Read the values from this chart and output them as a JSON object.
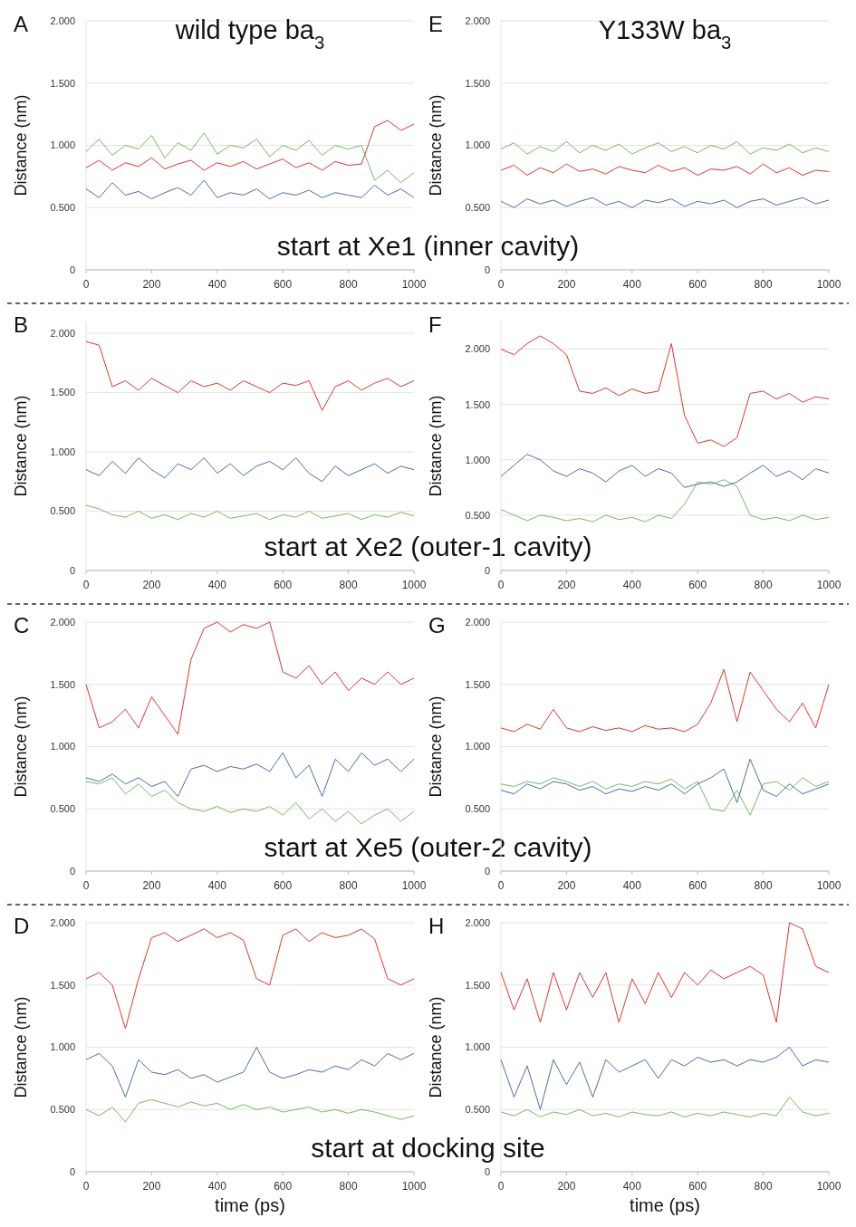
{
  "chart_data": [
    {
      "type": "line",
      "title": "A",
      "subtitle": "wild type ba$_{3}$",
      "ylabel": "Distance (nm)",
      "annotations": [
        "start at Xe1 (inner cavity)"
      ],
      "x": [
        0,
        40,
        80,
        120,
        160,
        200,
        240,
        280,
        320,
        360,
        400,
        440,
        480,
        520,
        560,
        600,
        640,
        680,
        720,
        760,
        800,
        840,
        880,
        920,
        960,
        1000
      ],
      "xlim": [
        0,
        1000
      ],
      "xticks": [
        0,
        200,
        400,
        600,
        800,
        1000
      ],
      "ylim": [
        0,
        2
      ],
      "yticks": [
        {
          "value": 0,
          "label": "0"
        },
        {
          "value": 0.5,
          "label": "0.500"
        },
        {
          "value": 1,
          "label": "1.000"
        },
        {
          "value": 1.5,
          "label": "1.500"
        },
        {
          "value": 2,
          "label": "2.000"
        }
      ],
      "grid": "y",
      "series": [
        {
          "color": "#e0352b",
          "values": [
            0.82,
            0.88,
            0.8,
            0.86,
            0.83,
            0.9,
            0.81,
            0.85,
            0.88,
            0.8,
            0.86,
            0.83,
            0.87,
            0.81,
            0.85,
            0.89,
            0.82,
            0.86,
            0.8,
            0.87,
            0.84,
            0.85,
            1.15,
            1.2,
            1.12,
            1.17
          ]
        },
        {
          "color": "#7ab665",
          "values": [
            0.95,
            1.05,
            0.92,
            1.0,
            0.97,
            1.08,
            0.9,
            1.02,
            0.96,
            1.1,
            0.93,
            1.0,
            0.98,
            1.05,
            0.91,
            1.0,
            0.96,
            1.04,
            0.92,
            1.0,
            0.97,
            1.0,
            0.72,
            0.8,
            0.7,
            0.78
          ]
        },
        {
          "color": "#4a6fa5",
          "values": [
            0.65,
            0.58,
            0.7,
            0.6,
            0.63,
            0.57,
            0.62,
            0.66,
            0.6,
            0.72,
            0.58,
            0.62,
            0.6,
            0.65,
            0.57,
            0.62,
            0.6,
            0.64,
            0.58,
            0.62,
            0.6,
            0.58,
            0.68,
            0.6,
            0.65,
            0.58
          ]
        }
      ]
    },
    {
      "type": "line",
      "title": "E",
      "subtitle": "Y133W ba$_{3}$",
      "ylabel": "Distance (nm)",
      "x": [
        0,
        40,
        80,
        120,
        160,
        200,
        240,
        280,
        320,
        360,
        400,
        440,
        480,
        520,
        560,
        600,
        640,
        680,
        720,
        760,
        800,
        840,
        880,
        920,
        960,
        1000
      ],
      "xlim": [
        0,
        1000
      ],
      "xticks": [
        0,
        200,
        400,
        600,
        800,
        1000
      ],
      "ylim": [
        0,
        2
      ],
      "yticks": [
        {
          "value": 0,
          "label": "0"
        },
        {
          "value": 0.5,
          "label": "0.500"
        },
        {
          "value": 1,
          "label": "1.000"
        },
        {
          "value": 1.5,
          "label": "1.500"
        },
        {
          "value": 2,
          "label": "2.000"
        }
      ],
      "grid": "y",
      "series": [
        {
          "color": "#e0352b",
          "values": [
            0.8,
            0.84,
            0.76,
            0.82,
            0.78,
            0.85,
            0.79,
            0.81,
            0.77,
            0.83,
            0.8,
            0.78,
            0.84,
            0.79,
            0.82,
            0.76,
            0.81,
            0.8,
            0.83,
            0.77,
            0.85,
            0.78,
            0.82,
            0.76,
            0.8,
            0.79
          ]
        },
        {
          "color": "#7ab665",
          "values": [
            0.97,
            1.02,
            0.93,
            0.99,
            0.95,
            1.03,
            0.94,
            1.0,
            0.96,
            1.01,
            0.93,
            0.98,
            1.02,
            0.95,
            0.99,
            0.94,
            1.0,
            0.97,
            1.03,
            0.93,
            0.98,
            0.96,
            1.01,
            0.94,
            0.98,
            0.95
          ]
        },
        {
          "color": "#4a6fa5",
          "values": [
            0.55,
            0.5,
            0.57,
            0.53,
            0.56,
            0.51,
            0.55,
            0.58,
            0.52,
            0.55,
            0.5,
            0.56,
            0.54,
            0.57,
            0.51,
            0.55,
            0.53,
            0.56,
            0.5,
            0.55,
            0.57,
            0.52,
            0.55,
            0.58,
            0.53,
            0.56
          ]
        }
      ]
    },
    {
      "type": "line",
      "title": "B",
      "ylabel": "Distance (nm)",
      "annotations": [
        "start at Xe2 (outer-1 cavity)"
      ],
      "x": [
        0,
        40,
        80,
        120,
        160,
        200,
        240,
        280,
        320,
        360,
        400,
        440,
        480,
        520,
        560,
        600,
        640,
        680,
        720,
        760,
        800,
        840,
        880,
        920,
        960,
        1000
      ],
      "xlim": [
        0,
        1000
      ],
      "xticks": [
        0,
        200,
        400,
        600,
        800,
        1000
      ],
      "ylim": [
        0,
        2.1
      ],
      "yticks": [
        {
          "value": 0,
          "label": "0"
        },
        {
          "value": 0.5,
          "label": "0.500"
        },
        {
          "value": 1,
          "label": "1.000"
        },
        {
          "value": 1.5,
          "label": "1.500"
        },
        {
          "value": 2,
          "label": "2.000"
        }
      ],
      "grid": "y",
      "series": [
        {
          "color": "#e0352b",
          "values": [
            1.93,
            1.9,
            1.55,
            1.6,
            1.52,
            1.62,
            1.56,
            1.5,
            1.6,
            1.55,
            1.58,
            1.52,
            1.6,
            1.55,
            1.5,
            1.58,
            1.56,
            1.6,
            1.35,
            1.55,
            1.6,
            1.52,
            1.58,
            1.62,
            1.55,
            1.6
          ]
        },
        {
          "color": "#7ab665",
          "values": [
            0.55,
            0.52,
            0.47,
            0.45,
            0.5,
            0.44,
            0.47,
            0.43,
            0.48,
            0.45,
            0.5,
            0.44,
            0.46,
            0.48,
            0.43,
            0.47,
            0.45,
            0.5,
            0.44,
            0.46,
            0.48,
            0.43,
            0.47,
            0.45,
            0.49,
            0.46
          ]
        },
        {
          "color": "#4a6fa5",
          "values": [
            0.85,
            0.8,
            0.92,
            0.82,
            0.95,
            0.85,
            0.78,
            0.9,
            0.85,
            0.95,
            0.82,
            0.9,
            0.8,
            0.88,
            0.92,
            0.85,
            0.95,
            0.82,
            0.75,
            0.88,
            0.8,
            0.85,
            0.9,
            0.82,
            0.88,
            0.85
          ]
        }
      ]
    },
    {
      "type": "line",
      "title": "F",
      "ylabel": "Distance (nm)",
      "x": [
        0,
        40,
        80,
        120,
        160,
        200,
        240,
        280,
        320,
        360,
        400,
        440,
        480,
        520,
        560,
        600,
        640,
        680,
        720,
        760,
        800,
        840,
        880,
        920,
        960,
        1000
      ],
      "xlim": [
        0,
        1000
      ],
      "xticks": [
        0,
        200,
        400,
        600,
        800,
        1000
      ],
      "ylim": [
        0,
        2.25
      ],
      "yticks": [
        {
          "value": 0,
          "label": "0"
        },
        {
          "value": 0.5,
          "label": "0.500"
        },
        {
          "value": 1,
          "label": "1.000"
        },
        {
          "value": 1.5,
          "label": "1.500"
        },
        {
          "value": 2,
          "label": "2.000"
        }
      ],
      "grid": "y",
      "series": [
        {
          "color": "#e0352b",
          "values": [
            2.0,
            1.95,
            2.05,
            2.12,
            2.05,
            1.95,
            1.62,
            1.6,
            1.65,
            1.58,
            1.64,
            1.6,
            1.62,
            2.05,
            1.4,
            1.15,
            1.18,
            1.12,
            1.2,
            1.6,
            1.62,
            1.55,
            1.6,
            1.52,
            1.57,
            1.55
          ]
        },
        {
          "color": "#7ab665",
          "values": [
            0.55,
            0.5,
            0.45,
            0.5,
            0.48,
            0.45,
            0.47,
            0.44,
            0.5,
            0.46,
            0.48,
            0.44,
            0.5,
            0.47,
            0.6,
            0.8,
            0.78,
            0.82,
            0.76,
            0.5,
            0.46,
            0.48,
            0.45,
            0.5,
            0.46,
            0.48
          ]
        },
        {
          "color": "#4a6fa5",
          "values": [
            0.85,
            0.95,
            1.05,
            1.0,
            0.9,
            0.85,
            0.92,
            0.88,
            0.8,
            0.9,
            0.95,
            0.85,
            0.92,
            0.88,
            0.75,
            0.78,
            0.8,
            0.76,
            0.8,
            0.88,
            0.95,
            0.85,
            0.9,
            0.82,
            0.92,
            0.88
          ]
        }
      ]
    },
    {
      "type": "line",
      "title": "C",
      "ylabel": "Distance (nm)",
      "annotations": [
        "start at Xe5 (outer-2 cavity)"
      ],
      "x": [
        0,
        40,
        80,
        120,
        160,
        200,
        240,
        280,
        320,
        360,
        400,
        440,
        480,
        520,
        560,
        600,
        640,
        680,
        720,
        760,
        800,
        840,
        880,
        920,
        960,
        1000
      ],
      "xlim": [
        0,
        1000
      ],
      "xticks": [
        0,
        200,
        400,
        600,
        800,
        1000
      ],
      "ylim": [
        0,
        2
      ],
      "yticks": [
        {
          "value": 0,
          "label": "0"
        },
        {
          "value": 0.5,
          "label": "0.500"
        },
        {
          "value": 1,
          "label": "1.000"
        },
        {
          "value": 1.5,
          "label": "1.500"
        },
        {
          "value": 2,
          "label": "2.000"
        }
      ],
      "grid": "y",
      "series": [
        {
          "color": "#e0352b",
          "values": [
            1.5,
            1.15,
            1.2,
            1.3,
            1.15,
            1.4,
            1.25,
            1.1,
            1.7,
            1.95,
            2.0,
            1.92,
            1.98,
            1.95,
            2.0,
            1.6,
            1.55,
            1.65,
            1.5,
            1.6,
            1.45,
            1.55,
            1.5,
            1.6,
            1.5,
            1.55
          ]
        },
        {
          "color": "#7ab665",
          "values": [
            0.72,
            0.7,
            0.75,
            0.62,
            0.7,
            0.6,
            0.65,
            0.55,
            0.5,
            0.48,
            0.52,
            0.47,
            0.5,
            0.48,
            0.52,
            0.45,
            0.55,
            0.42,
            0.5,
            0.4,
            0.48,
            0.38,
            0.45,
            0.5,
            0.4,
            0.48
          ]
        },
        {
          "color": "#4a6fa5",
          "values": [
            0.75,
            0.72,
            0.78,
            0.7,
            0.75,
            0.68,
            0.72,
            0.6,
            0.82,
            0.85,
            0.8,
            0.84,
            0.82,
            0.86,
            0.8,
            0.95,
            0.75,
            0.85,
            0.6,
            0.9,
            0.8,
            0.95,
            0.85,
            0.9,
            0.8,
            0.9
          ]
        }
      ]
    },
    {
      "type": "line",
      "title": "G",
      "ylabel": "Distance (nm)",
      "x": [
        0,
        40,
        80,
        120,
        160,
        200,
        240,
        280,
        320,
        360,
        400,
        440,
        480,
        520,
        560,
        600,
        640,
        680,
        720,
        760,
        800,
        840,
        880,
        920,
        960,
        1000
      ],
      "xlim": [
        0,
        1000
      ],
      "xticks": [
        0,
        200,
        400,
        600,
        800,
        1000
      ],
      "ylim": [
        0,
        2
      ],
      "yticks": [
        {
          "value": 0,
          "label": "0"
        },
        {
          "value": 0.5,
          "label": "0.500"
        },
        {
          "value": 1,
          "label": "1.000"
        },
        {
          "value": 1.5,
          "label": "1.500"
        },
        {
          "value": 2,
          "label": "2.000"
        }
      ],
      "grid": "y",
      "series": [
        {
          "color": "#e0352b",
          "values": [
            1.15,
            1.12,
            1.18,
            1.14,
            1.3,
            1.15,
            1.12,
            1.16,
            1.13,
            1.15,
            1.12,
            1.17,
            1.14,
            1.15,
            1.12,
            1.18,
            1.35,
            1.62,
            1.2,
            1.6,
            1.45,
            1.3,
            1.2,
            1.35,
            1.15,
            1.5
          ]
        },
        {
          "color": "#7ab665",
          "values": [
            0.7,
            0.68,
            0.72,
            0.7,
            0.75,
            0.72,
            0.68,
            0.72,
            0.66,
            0.7,
            0.68,
            0.72,
            0.7,
            0.74,
            0.66,
            0.72,
            0.5,
            0.48,
            0.65,
            0.45,
            0.7,
            0.72,
            0.65,
            0.75,
            0.68,
            0.72
          ]
        },
        {
          "color": "#4a6fa5",
          "values": [
            0.65,
            0.62,
            0.7,
            0.66,
            0.72,
            0.7,
            0.65,
            0.68,
            0.62,
            0.66,
            0.64,
            0.68,
            0.65,
            0.7,
            0.62,
            0.7,
            0.75,
            0.82,
            0.55,
            0.9,
            0.65,
            0.6,
            0.7,
            0.62,
            0.66,
            0.7
          ]
        }
      ]
    },
    {
      "type": "line",
      "title": "D",
      "xlabel": "time (ps)",
      "ylabel": "Distance (nm)",
      "annotations": [
        "start at docking site"
      ],
      "x": [
        0,
        40,
        80,
        120,
        160,
        200,
        240,
        280,
        320,
        360,
        400,
        440,
        480,
        520,
        560,
        600,
        640,
        680,
        720,
        760,
        800,
        840,
        880,
        920,
        960,
        1000
      ],
      "xlim": [
        0,
        1000
      ],
      "xticks": [
        0,
        200,
        400,
        600,
        800,
        1000
      ],
      "ylim": [
        0,
        2
      ],
      "yticks": [
        {
          "value": 0,
          "label": "0"
        },
        {
          "value": 0.5,
          "label": "0.500"
        },
        {
          "value": 1,
          "label": "1.000"
        },
        {
          "value": 1.5,
          "label": "1.500"
        },
        {
          "value": 2,
          "label": "2.000"
        }
      ],
      "grid": "y",
      "series": [
        {
          "color": "#e0352b",
          "values": [
            1.55,
            1.6,
            1.5,
            1.15,
            1.55,
            1.88,
            1.92,
            1.85,
            1.9,
            1.95,
            1.88,
            1.92,
            1.86,
            1.55,
            1.5,
            1.9,
            1.95,
            1.85,
            1.92,
            1.88,
            1.9,
            1.95,
            1.87,
            1.55,
            1.5,
            1.55
          ]
        },
        {
          "color": "#7ab665",
          "values": [
            0.5,
            0.45,
            0.52,
            0.4,
            0.55,
            0.58,
            0.55,
            0.52,
            0.56,
            0.53,
            0.55,
            0.5,
            0.54,
            0.5,
            0.52,
            0.48,
            0.5,
            0.52,
            0.48,
            0.5,
            0.47,
            0.5,
            0.48,
            0.45,
            0.42,
            0.45
          ]
        },
        {
          "color": "#4a6fa5",
          "values": [
            0.9,
            0.95,
            0.85,
            0.6,
            0.9,
            0.8,
            0.78,
            0.82,
            0.75,
            0.78,
            0.72,
            0.76,
            0.8,
            1.0,
            0.8,
            0.75,
            0.78,
            0.82,
            0.8,
            0.85,
            0.82,
            0.9,
            0.85,
            0.95,
            0.9,
            0.95
          ]
        }
      ]
    },
    {
      "type": "line",
      "title": "H",
      "xlabel": "time (ps)",
      "ylabel": "Distance (nm)",
      "x": [
        0,
        40,
        80,
        120,
        160,
        200,
        240,
        280,
        320,
        360,
        400,
        440,
        480,
        520,
        560,
        600,
        640,
        680,
        720,
        760,
        800,
        840,
        880,
        920,
        960,
        1000
      ],
      "xlim": [
        0,
        1000
      ],
      "xticks": [
        0,
        200,
        400,
        600,
        800,
        1000
      ],
      "ylim": [
        0,
        2
      ],
      "yticks": [
        {
          "value": 0,
          "label": "0"
        },
        {
          "value": 0.5,
          "label": "0.500"
        },
        {
          "value": 1,
          "label": "1.000"
        },
        {
          "value": 1.5,
          "label": "1.500"
        },
        {
          "value": 2,
          "label": "2.000"
        }
      ],
      "grid": "y",
      "series": [
        {
          "color": "#e0352b",
          "values": [
            1.6,
            1.3,
            1.55,
            1.2,
            1.6,
            1.3,
            1.6,
            1.4,
            1.6,
            1.2,
            1.55,
            1.35,
            1.6,
            1.4,
            1.6,
            1.5,
            1.62,
            1.55,
            1.6,
            1.65,
            1.58,
            1.2,
            2.0,
            1.95,
            1.65,
            1.6
          ]
        },
        {
          "color": "#7ab665",
          "values": [
            0.48,
            0.45,
            0.5,
            0.44,
            0.48,
            0.46,
            0.5,
            0.45,
            0.47,
            0.44,
            0.48,
            0.46,
            0.45,
            0.48,
            0.44,
            0.47,
            0.45,
            0.48,
            0.46,
            0.44,
            0.47,
            0.45,
            0.6,
            0.48,
            0.45,
            0.47
          ]
        },
        {
          "color": "#4a6fa5",
          "values": [
            0.9,
            0.6,
            0.85,
            0.5,
            0.9,
            0.7,
            0.88,
            0.6,
            0.9,
            0.8,
            0.85,
            0.9,
            0.75,
            0.9,
            0.85,
            0.92,
            0.88,
            0.9,
            0.85,
            0.9,
            0.88,
            0.92,
            1.0,
            0.85,
            0.9,
            0.88
          ]
        }
      ]
    }
  ]
}
